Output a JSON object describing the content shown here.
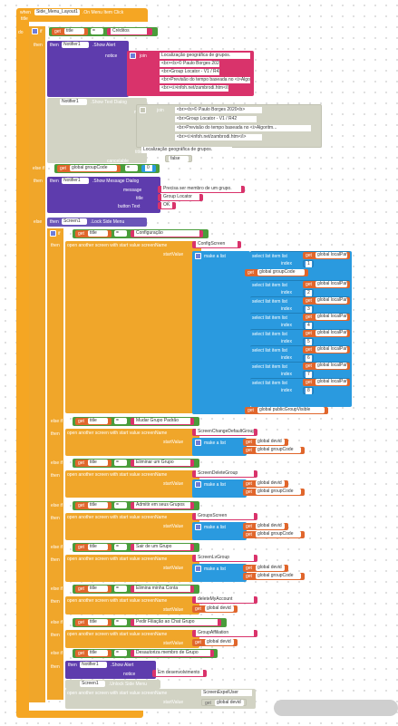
{
  "event": {
    "when": "when",
    "component": "Side_Menu_Layout1",
    "event_name": ".On Menu Item Click",
    "param": "title"
  },
  "kw": {
    "do": "do",
    "if": "if",
    "then": "then",
    "else_if": "else if",
    "else": "else"
  },
  "get_title": {
    "get": "get",
    "var": "title"
  },
  "op_eq": "=",
  "creditos": "Créditos",
  "alert": {
    "component": "Notifier1",
    "method": ".Show Alert",
    "notice": "notice",
    "join": "join"
  },
  "join_items": [
    "Localização geográfica de grupos.",
    "<br><b>© Paulo Borges 2020<b>",
    "<br>Group Locator - V1 / R42",
    "<br>Previsão do tempo baseada no <i>Algoritmo de...",
    "<br><i>infoh.net/zambrodi.htm</i>"
  ],
  "textdialog": {
    "component": "Notifier1",
    "method": ".Show Text Dialog",
    "message": "message",
    "join": "join",
    "items": [
      "<br><b>© Paulo Borges 2020<b>",
      "<br>Group Locator - V1 / R42",
      "<br>Previsão do tempo baseada no <i>Algoritm...",
      "<br><i>infoh.net/zambrodi.htm</i>"
    ],
    "title_label": "title",
    "title_value": "Localização geográfica de grupos.",
    "cancelable_label": "cancelable",
    "cancelable_value": "false"
  },
  "elseif1": {
    "get": "get",
    "var": "global groupCode",
    "op": "=",
    "num": "0"
  },
  "msgdialog": {
    "component": "Notifier1",
    "method": ".Show Message Dialog",
    "message": "message",
    "message_value": "Precisa ser membro de um grupo.",
    "title": "title",
    "title_value": "Group Locator",
    "button": "button Text",
    "button_value": "OK"
  },
  "lock": {
    "component": "Screen1",
    "method": ".Lock Side Menu"
  },
  "configuracao": "Configuração",
  "open_screen": {
    "label": "open another screen with start value  screenName",
    "start": "startValue"
  },
  "config_screen": "ConfigScreen",
  "make_list": "make a list",
  "select": {
    "label": "select list item  list",
    "get": "get",
    "var": "global localParms",
    "index": "index"
  },
  "indices": [
    "1",
    "2",
    "3",
    "4",
    "5",
    "6",
    "7",
    "8"
  ],
  "get_group_code": {
    "get": "get",
    "var": "global groupCode"
  },
  "get_public": {
    "get": "get",
    "var": "global publicGroupVisible"
  },
  "get_devid": {
    "get": "get",
    "var": "global devid"
  },
  "branches": [
    {
      "label": "Mudar Grupo Padrão",
      "screen": "ScreenChangeDefaultGroup"
    },
    {
      "label": "Eliminar um Grupo",
      "screen": "ScreenDeleteGroup"
    },
    {
      "label": "Admitir em seus Grupos",
      "screen": "GroupsScreen"
    },
    {
      "label": "Sair de um Grupo",
      "screen": "ScreenLvGroup"
    },
    {
      "label": "Elimina minha Conta",
      "screen": "deleteMyAccount"
    },
    {
      "label": "Pedir Filiação ao Chat Grupo",
      "screen": "GroupAffiliation"
    }
  ],
  "last": {
    "label": "Desautoriza membro de Grupo",
    "alert_component": "Notifier1",
    "alert_method": ".Show Alert",
    "notice": "notice",
    "notice_value": "Em desenvolvimento",
    "unlock_component": "Screen1",
    "unlock_method": ".Unlock Side Menu",
    "screen_value": "ScreenExpelUser"
  }
}
